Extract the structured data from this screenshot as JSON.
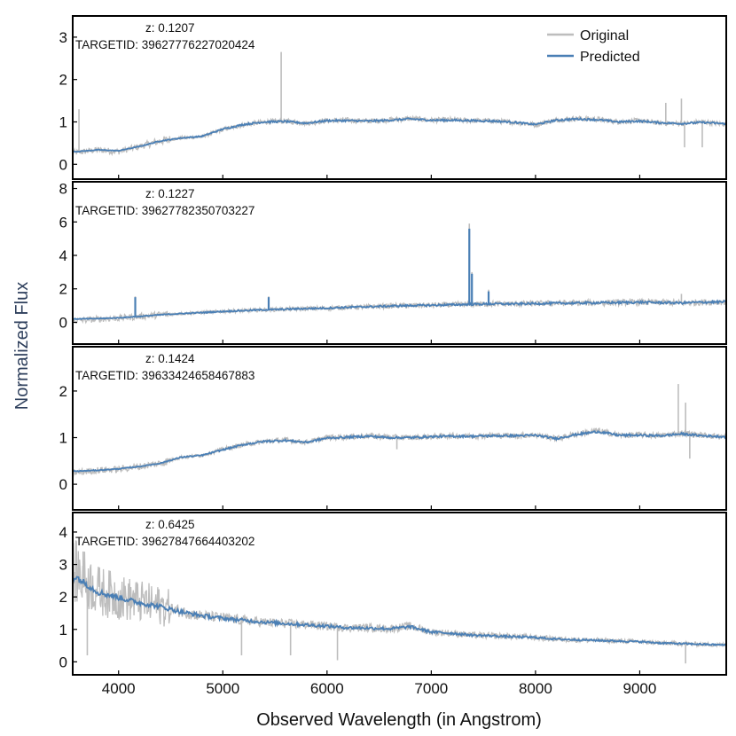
{
  "figure": {
    "xlabel": "Observed Wavelength (in Angstrom)",
    "ylabel": "Normalized Flux",
    "legend": {
      "placement": "top-right",
      "entries": [
        "Original",
        "Predicted"
      ]
    },
    "colors": {
      "original": "#bdbdbd",
      "predicted": "#4a7fb5",
      "axis": "#000000",
      "ylabel": "#2e3f5c"
    }
  },
  "chart_data": [
    {
      "type": "line",
      "z_label": "z: 0.1207",
      "target_label": "TARGETID: 39627776227020424",
      "xlim": [
        3560,
        9830
      ],
      "ylim": [
        -0.35,
        3.5
      ],
      "yticks": [
        0,
        1,
        2,
        3
      ],
      "series": [
        {
          "name": "Original",
          "x": [
            3600,
            3800,
            4000,
            4200,
            4400,
            4600,
            4800,
            5000,
            5200,
            5400,
            5600,
            5800,
            6000,
            6200,
            6400,
            6600,
            6800,
            7000,
            7200,
            7400,
            7600,
            7800,
            8000,
            8200,
            8400,
            8600,
            8800,
            9000,
            9200,
            9400,
            9600,
            9800
          ],
          "values": [
            0.28,
            0.34,
            0.3,
            0.42,
            0.55,
            0.62,
            0.65,
            0.82,
            0.93,
            1.0,
            1.02,
            0.97,
            1.03,
            1.04,
            1.02,
            1.05,
            1.08,
            1.04,
            1.05,
            1.03,
            1.02,
            0.99,
            0.93,
            1.05,
            1.08,
            1.06,
            1.0,
            1.03,
            0.97,
            0.96,
            1.0,
            0.95
          ]
        },
        {
          "name": "Predicted",
          "x": [
            3600,
            3800,
            4000,
            4200,
            4400,
            4600,
            4800,
            5000,
            5200,
            5400,
            5600,
            5800,
            6000,
            6200,
            6400,
            6600,
            6800,
            7000,
            7200,
            7400,
            7600,
            7800,
            8000,
            8200,
            8400,
            8600,
            8800,
            9000,
            9200,
            9400,
            9600,
            9800
          ],
          "values": [
            0.3,
            0.34,
            0.32,
            0.42,
            0.55,
            0.62,
            0.66,
            0.83,
            0.94,
            1.0,
            1.01,
            0.97,
            1.03,
            1.03,
            1.02,
            1.04,
            1.07,
            1.04,
            1.04,
            1.03,
            1.02,
            0.99,
            0.94,
            1.04,
            1.07,
            1.05,
            1.0,
            1.02,
            0.98,
            0.96,
            0.99,
            0.96
          ]
        }
      ],
      "spikes": [
        {
          "x": 5560,
          "y": 2.65
        },
        {
          "x": 3620,
          "y": 1.3
        },
        {
          "x": 9250,
          "y": 1.45
        },
        {
          "x": 9400,
          "y": 1.55
        },
        {
          "x": 9430,
          "y": 0.4
        },
        {
          "x": 9600,
          "y": 0.4
        }
      ]
    },
    {
      "type": "line",
      "z_label": "z: 0.1227",
      "target_label": "TARGETID: 39627782350703227",
      "xlim": [
        3560,
        9830
      ],
      "ylim": [
        -1.3,
        8.4
      ],
      "yticks": [
        0,
        2,
        4,
        6,
        8
      ],
      "series": [
        {
          "name": "Original",
          "x": [
            3600,
            3800,
            4000,
            4200,
            4400,
            4600,
            4800,
            5000,
            5200,
            5400,
            5600,
            5800,
            6000,
            6200,
            6400,
            6600,
            6800,
            7000,
            7200,
            7400,
            7600,
            7800,
            8000,
            8200,
            8400,
            8600,
            8800,
            9000,
            9200,
            9400,
            9600,
            9800
          ],
          "values": [
            0.1,
            0.2,
            0.25,
            0.35,
            0.45,
            0.52,
            0.58,
            0.65,
            0.7,
            0.75,
            0.78,
            0.82,
            0.85,
            0.9,
            0.93,
            0.98,
            1.0,
            1.02,
            1.05,
            1.08,
            1.1,
            1.1,
            1.12,
            1.14,
            1.15,
            1.17,
            1.18,
            1.2,
            1.18,
            1.16,
            1.2,
            1.22
          ]
        },
        {
          "name": "Predicted",
          "x": [
            3600,
            3800,
            4000,
            4200,
            4400,
            4600,
            4800,
            5000,
            5200,
            5400,
            5600,
            5800,
            6000,
            6200,
            6400,
            6600,
            6800,
            7000,
            7200,
            7400,
            7600,
            7800,
            8000,
            8200,
            8400,
            8600,
            8800,
            9000,
            9200,
            9400,
            9600,
            9800
          ],
          "values": [
            0.2,
            0.22,
            0.27,
            0.35,
            0.45,
            0.52,
            0.58,
            0.65,
            0.7,
            0.75,
            0.78,
            0.82,
            0.85,
            0.9,
            0.93,
            0.97,
            1.0,
            1.02,
            1.05,
            1.08,
            1.1,
            1.1,
            1.12,
            1.14,
            1.15,
            1.17,
            1.18,
            1.2,
            1.18,
            1.16,
            1.2,
            1.22
          ]
        }
      ],
      "spikes": [
        {
          "x": 4160,
          "y": 1.55
        },
        {
          "x": 5440,
          "y": 1.55
        },
        {
          "x": 7365,
          "y": 5.9
        },
        {
          "x": 7390,
          "y": 3.0
        },
        {
          "x": 7550,
          "y": 1.95
        },
        {
          "x": 9400,
          "y": 1.7
        }
      ],
      "predicted_spikes": [
        {
          "x": 4160,
          "y": 1.5
        },
        {
          "x": 5440,
          "y": 1.5
        },
        {
          "x": 7365,
          "y": 5.6
        },
        {
          "x": 7390,
          "y": 2.9
        },
        {
          "x": 7550,
          "y": 1.85
        }
      ]
    },
    {
      "type": "line",
      "z_label": "z: 0.1424",
      "target_label": "TARGETID: 39633424658467883",
      "xlim": [
        3560,
        9830
      ],
      "ylim": [
        -0.55,
        2.95
      ],
      "yticks": [
        0,
        1,
        2
      ],
      "series": [
        {
          "name": "Original",
          "x": [
            3600,
            3800,
            4000,
            4200,
            4400,
            4600,
            4800,
            5000,
            5200,
            5400,
            5600,
            5800,
            6000,
            6200,
            6400,
            6600,
            6800,
            7000,
            7200,
            7400,
            7600,
            7800,
            8000,
            8200,
            8400,
            8600,
            8800,
            9000,
            9200,
            9400,
            9600,
            9800
          ],
          "values": [
            0.25,
            0.3,
            0.32,
            0.38,
            0.45,
            0.58,
            0.62,
            0.75,
            0.85,
            0.92,
            0.95,
            0.9,
            1.0,
            1.02,
            1.04,
            1.01,
            1.0,
            1.02,
            1.04,
            1.03,
            1.05,
            1.04,
            1.06,
            0.98,
            1.08,
            1.15,
            1.05,
            1.06,
            1.04,
            1.1,
            1.05,
            1.02
          ]
        },
        {
          "name": "Predicted",
          "x": [
            3600,
            3800,
            4000,
            4200,
            4400,
            4600,
            4800,
            5000,
            5200,
            5400,
            5600,
            5800,
            6000,
            6200,
            6400,
            6600,
            6800,
            7000,
            7200,
            7400,
            7600,
            7800,
            8000,
            8200,
            8400,
            8600,
            8800,
            9000,
            9200,
            9400,
            9600,
            9800
          ],
          "values": [
            0.28,
            0.3,
            0.33,
            0.38,
            0.45,
            0.58,
            0.62,
            0.74,
            0.85,
            0.92,
            0.94,
            0.9,
            0.99,
            1.01,
            1.03,
            1.0,
            1.0,
            1.02,
            1.03,
            1.03,
            1.04,
            1.04,
            1.05,
            0.98,
            1.07,
            1.13,
            1.05,
            1.05,
            1.04,
            1.08,
            1.04,
            1.02
          ]
        }
      ],
      "spikes": [
        {
          "x": 9370,
          "y": 2.15
        },
        {
          "x": 9440,
          "y": 1.75
        },
        {
          "x": 9480,
          "y": 0.55
        },
        {
          "x": 6670,
          "y": 0.75
        }
      ]
    },
    {
      "type": "line",
      "z_label": "z: 0.6425",
      "target_label": "TARGETID: 39627847664403202",
      "xlim": [
        3560,
        9830
      ],
      "ylim": [
        -0.4,
        4.6
      ],
      "yticks": [
        0,
        1,
        2,
        3,
        4
      ],
      "xticks": [
        4000,
        5000,
        6000,
        7000,
        8000,
        9000
      ],
      "series": [
        {
          "name": "Original",
          "x": [
            3600,
            3800,
            4000,
            4200,
            4400,
            4600,
            4800,
            5000,
            5200,
            5400,
            5600,
            5800,
            6000,
            6200,
            6400,
            6600,
            6800,
            7000,
            7200,
            7400,
            7600,
            7800,
            8000,
            8200,
            8400,
            8600,
            8800,
            9000,
            9200,
            9400,
            9600,
            9800
          ],
          "values": [
            2.75,
            2.2,
            2.0,
            1.85,
            1.72,
            1.55,
            1.42,
            1.35,
            1.28,
            1.22,
            1.18,
            1.15,
            1.1,
            1.05,
            1.05,
            1.02,
            1.1,
            0.92,
            0.88,
            0.82,
            0.8,
            0.78,
            0.75,
            0.7,
            0.68,
            0.66,
            0.64,
            0.62,
            0.58,
            0.56,
            0.54,
            0.52
          ]
        },
        {
          "name": "Predicted",
          "x": [
            3600,
            3800,
            4000,
            4200,
            4400,
            4600,
            4800,
            5000,
            5200,
            5400,
            5600,
            5800,
            6000,
            6200,
            6400,
            6600,
            6800,
            7000,
            7200,
            7400,
            7600,
            7800,
            8000,
            8200,
            8400,
            8600,
            8800,
            9000,
            9200,
            9400,
            9600,
            9800
          ],
          "values": [
            2.6,
            2.15,
            1.98,
            1.82,
            1.7,
            1.54,
            1.42,
            1.34,
            1.28,
            1.22,
            1.18,
            1.14,
            1.1,
            1.05,
            1.04,
            1.02,
            1.08,
            0.92,
            0.88,
            0.82,
            0.8,
            0.77,
            0.75,
            0.7,
            0.68,
            0.66,
            0.64,
            0.62,
            0.58,
            0.56,
            0.54,
            0.52
          ]
        }
      ],
      "spikes": [
        {
          "x": 3660,
          "y": 3.4
        },
        {
          "x": 3700,
          "y": 0.2
        },
        {
          "x": 5180,
          "y": 0.2
        },
        {
          "x": 5650,
          "y": 0.2
        },
        {
          "x": 6100,
          "y": 0.05
        },
        {
          "x": 9440,
          "y": -0.05
        }
      ]
    }
  ]
}
